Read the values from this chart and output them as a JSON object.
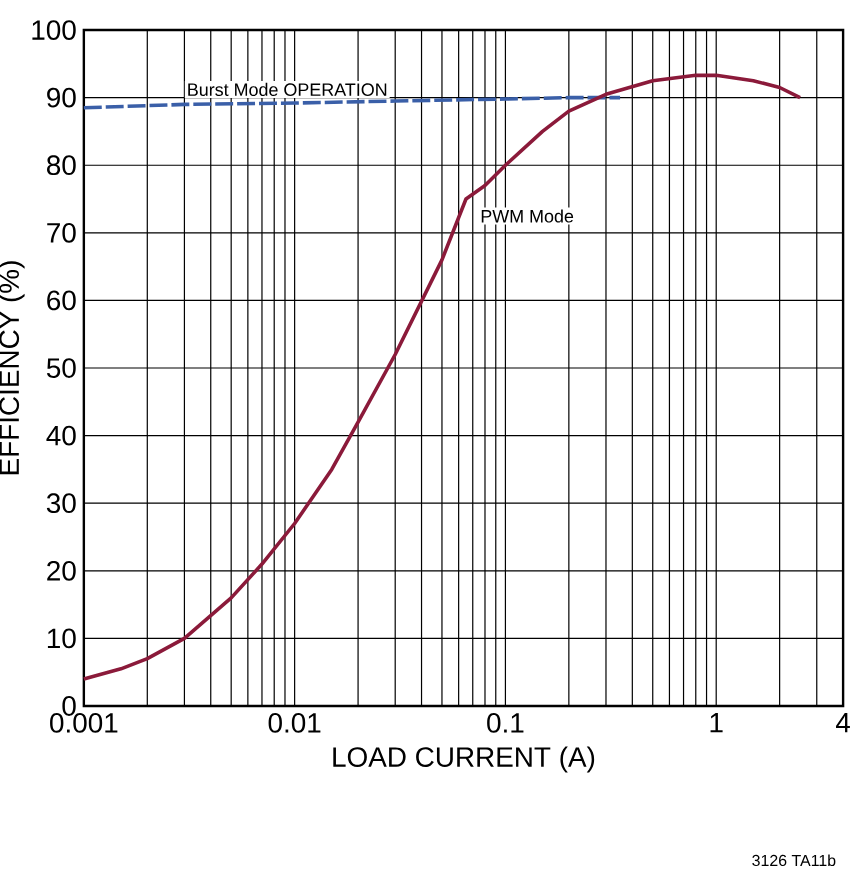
{
  "chart_data": {
    "type": "line",
    "xlabel": "LOAD CURRENT (A)",
    "ylabel": "EFFICIENCY (%)",
    "log": "x",
    "grid": true,
    "legend": false,
    "marker": "none",
    "xlim": [
      0.001,
      4
    ],
    "xticks": [
      0.001,
      0.01,
      0.1,
      1,
      4
    ],
    "ylim": [
      0,
      100
    ],
    "yticks": [
      0,
      10,
      20,
      30,
      40,
      50,
      60,
      70,
      80,
      90,
      100
    ],
    "annotations": [
      "3126 TA11b"
    ],
    "series": [
      {
        "name": "Burst Mode OPERATION",
        "color": "#3a5fa8",
        "line_style": "dashed",
        "x": [
          0.001,
          0.003,
          0.01,
          0.03,
          0.1,
          0.2,
          0.35
        ],
        "values": [
          88.5,
          89,
          89.2,
          89.5,
          89.8,
          90,
          90
        ]
      },
      {
        "name": "PWM Mode",
        "color": "#8b1a3a",
        "line_style": "solid",
        "x": [
          0.001,
          0.0015,
          0.002,
          0.003,
          0.005,
          0.007,
          0.01,
          0.015,
          0.02,
          0.03,
          0.05,
          0.065,
          0.08,
          0.1,
          0.15,
          0.2,
          0.3,
          0.5,
          0.8,
          1,
          1.5,
          2,
          2.5
        ],
        "values": [
          4,
          5.5,
          7,
          10,
          16,
          21,
          27,
          35,
          42,
          52,
          66,
          75,
          77,
          80,
          85,
          88,
          90.5,
          92.5,
          93.3,
          93.3,
          92.5,
          91.5,
          90
        ]
      }
    ]
  }
}
